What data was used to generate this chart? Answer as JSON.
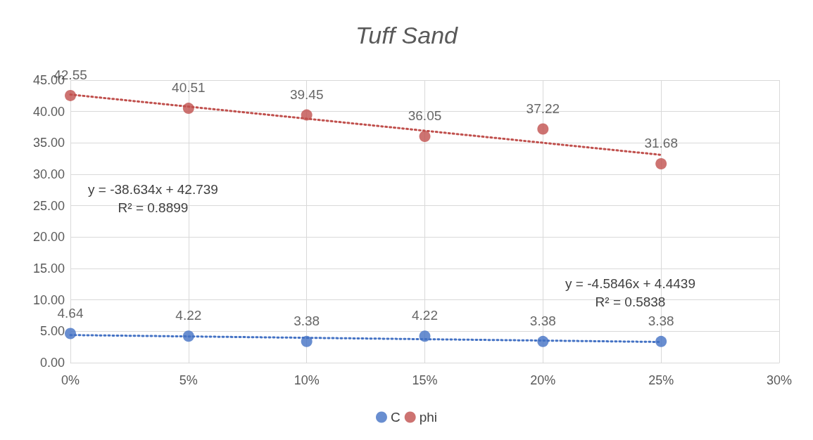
{
  "chart_data": {
    "type": "scatter",
    "title": "Tuff Sand",
    "x": [
      0,
      0.05,
      0.1,
      0.15,
      0.2,
      0.25
    ],
    "series": [
      {
        "name": "C",
        "color": "#4472c4",
        "values": [
          4.64,
          4.22,
          3.38,
          4.22,
          3.38,
          3.38
        ],
        "value_labels": [
          "4.64",
          "4.22",
          "3.38",
          "4.22",
          "3.38",
          "3.38"
        ]
      },
      {
        "name": "phi",
        "color": "#c0504d",
        "values": [
          42.55,
          40.51,
          39.45,
          36.05,
          37.22,
          31.68
        ],
        "value_labels": [
          "42.55",
          "40.51",
          "39.45",
          "36.05",
          "37.22",
          "31.68"
        ]
      },
      {
        "type": "line",
        "color": "#c0504d",
        "values": [
          42.7,
          null,
          null,
          null,
          null,
          33.1
        ],
        "marker": "none",
        "line_style": "dotted"
      },
      {
        "type": "line",
        "color": "#4472c4",
        "values": [
          4.4,
          null,
          null,
          null,
          null,
          3.3
        ],
        "marker": "none",
        "line_style": "dotted"
      }
    ],
    "xlim": [
      0,
      0.3
    ],
    "xticks": [
      {
        "value": 0,
        "label": "0%"
      },
      {
        "value": 0.05,
        "label": "5%"
      },
      {
        "value": 0.1,
        "label": "10%"
      },
      {
        "value": 0.15,
        "label": "15%"
      },
      {
        "value": 0.2,
        "label": "20%"
      },
      {
        "value": 0.25,
        "label": "25%"
      },
      {
        "value": 0.3,
        "label": "30%"
      }
    ],
    "ylim": [
      0,
      45
    ],
    "yticks": [
      {
        "value": 0,
        "label": "0.00"
      },
      {
        "value": 5,
        "label": "5.00"
      },
      {
        "value": 10,
        "label": "10.00"
      },
      {
        "value": 15,
        "label": "15.00"
      },
      {
        "value": 20,
        "label": "20.00"
      },
      {
        "value": 25,
        "label": "25.00"
      },
      {
        "value": 30,
        "label": "30.00"
      },
      {
        "value": 35,
        "label": "35.00"
      },
      {
        "value": 40,
        "label": "40.00"
      },
      {
        "value": 45,
        "label": "45.00"
      }
    ],
    "annotations": [
      "y = -38.634x + 42.739\nR² = 0.8899",
      "y = -4.5846x + 4.4439\nR² = 0.5838"
    ],
    "grid": true,
    "legend": "bottom",
    "marker": "circle"
  }
}
